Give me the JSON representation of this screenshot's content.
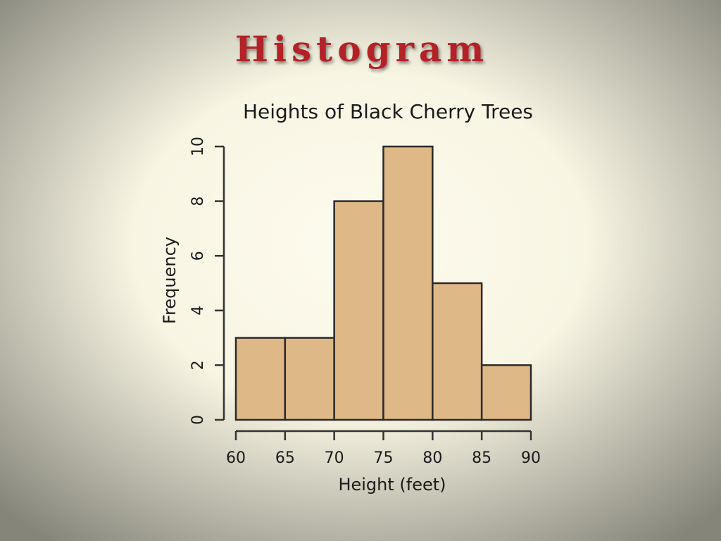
{
  "slide_title": "Histogram",
  "chart_data": {
    "type": "histogram",
    "title": "Heights of Black Cherry Trees",
    "x_label": "Height (feet)",
    "y_label": "Frequency",
    "bins": [
      60,
      65,
      70,
      75,
      80,
      85,
      90
    ],
    "values": [
      3,
      3,
      8,
      10,
      5,
      2
    ],
    "color": "#deb887",
    "xlim": [
      60,
      90
    ],
    "xticks": [
      60,
      65,
      70,
      75,
      80,
      85,
      90
    ],
    "ylim": [
      0,
      10
    ],
    "yticks": [
      0,
      2,
      4,
      6,
      8,
      10
    ]
  }
}
